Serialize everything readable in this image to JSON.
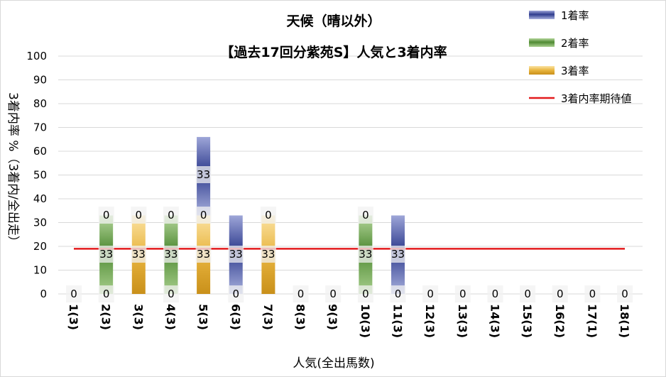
{
  "chart_data": {
    "type": "bar",
    "title": "天候（晴以外）",
    "subtitle": "【過去17回分紫苑S】人気と3着内率",
    "xlabel": "人気(全出馬数)",
    "ylabel": "3着内率 %（3着内/全出走）",
    "ylim": [
      0,
      100
    ],
    "yticks": [
      0,
      10,
      20,
      30,
      40,
      50,
      60,
      70,
      80,
      90,
      100
    ],
    "categories": [
      "1(3)",
      "2(3)",
      "3(3)",
      "4(3)",
      "5(3)",
      "6(3)",
      "7(3)",
      "8(3)",
      "9(3)",
      "10(3)",
      "11(3)",
      "12(3)",
      "13(3)",
      "14(3)",
      "15(3)",
      "16(2)",
      "17(1)",
      "18(1)"
    ],
    "series": [
      {
        "name": "1着率",
        "color": "#4a5bab",
        "values": [
          0,
          0,
          0,
          0,
          33,
          33,
          0,
          0,
          0,
          0,
          33,
          0,
          0,
          0,
          0,
          0,
          0,
          0
        ]
      },
      {
        "name": "2着率",
        "color": "#5e9a3e",
        "values": [
          0,
          33,
          0,
          33,
          0,
          0,
          0,
          0,
          0,
          33,
          0,
          0,
          0,
          0,
          0,
          0,
          0,
          0
        ]
      },
      {
        "name": "3着率",
        "color": "#e0a72a",
        "values": [
          0,
          0,
          33,
          0,
          33,
          0,
          33,
          0,
          0,
          0,
          0,
          0,
          0,
          0,
          0,
          0,
          0,
          0
        ]
      }
    ],
    "reference_line": {
      "name": "3着内率期待値",
      "value": 19,
      "color": "#e31a1c"
    },
    "data_labels": [
      {
        "category": "1(3)",
        "bottom": "0",
        "middle": "",
        "top": ""
      },
      {
        "category": "2(3)",
        "bottom": "0",
        "middle": "33",
        "top": "0"
      },
      {
        "category": "3(3)",
        "bottom": "",
        "middle": "33",
        "top": "0"
      },
      {
        "category": "4(3)",
        "bottom": "0",
        "middle": "33",
        "top": "0"
      },
      {
        "category": "5(3)",
        "bottom": "",
        "middle": "33",
        "top": "0",
        "extra": "33"
      },
      {
        "category": "6(3)",
        "bottom": "0",
        "middle": "33",
        "top": ""
      },
      {
        "category": "7(3)",
        "bottom": "",
        "middle": "33",
        "top": "0"
      },
      {
        "category": "8(3)",
        "bottom": "0",
        "middle": "",
        "top": ""
      },
      {
        "category": "9(3)",
        "bottom": "0",
        "middle": "",
        "top": ""
      },
      {
        "category": "10(3)",
        "bottom": "0",
        "middle": "33",
        "top": "0"
      },
      {
        "category": "11(3)",
        "bottom": "0",
        "middle": "33",
        "top": ""
      },
      {
        "category": "12(3)",
        "bottom": "0",
        "middle": "",
        "top": ""
      },
      {
        "category": "13(3)",
        "bottom": "0",
        "middle": "",
        "top": ""
      },
      {
        "category": "14(3)",
        "bottom": "0",
        "middle": "",
        "top": ""
      },
      {
        "category": "15(3)",
        "bottom": "0",
        "middle": "",
        "top": ""
      },
      {
        "category": "16(2)",
        "bottom": "0",
        "middle": "",
        "top": ""
      },
      {
        "category": "17(1)",
        "bottom": "0",
        "middle": "",
        "top": ""
      },
      {
        "category": "18(1)",
        "bottom": "0",
        "middle": "",
        "top": ""
      }
    ],
    "legend_position": "top-right",
    "grid": true
  }
}
